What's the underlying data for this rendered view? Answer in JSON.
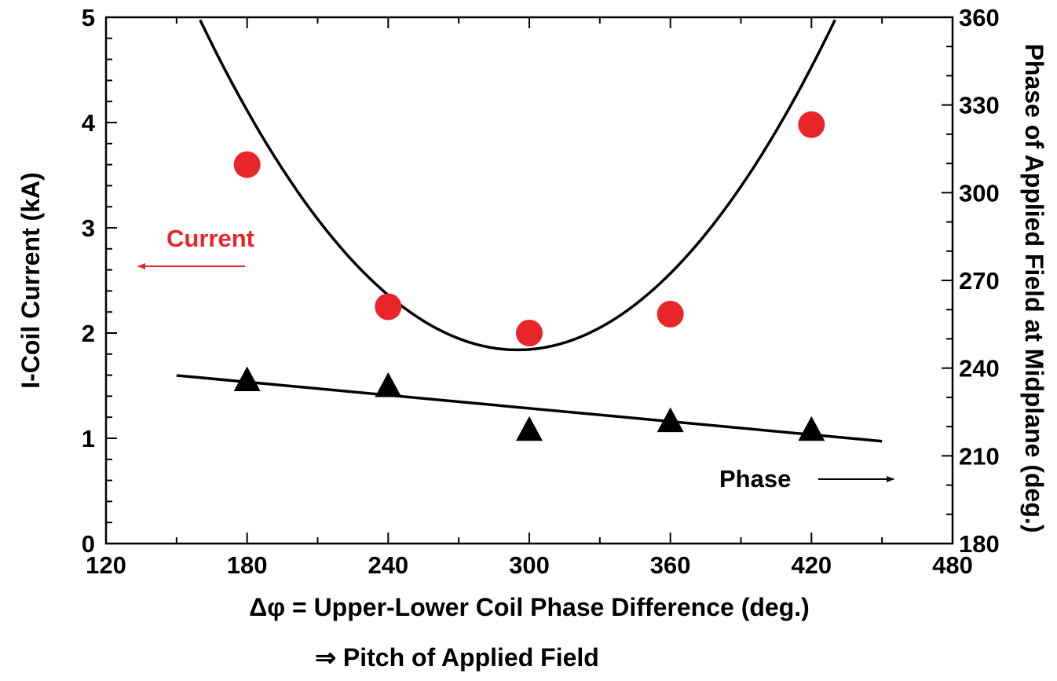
{
  "chart_data": {
    "type": "scatter",
    "title": "",
    "xlabel_line1": "Δφ = Upper-Lower Coil Phase Difference (deg.)",
    "xlabel_line2": "⇒ Pitch of Applied Field",
    "ylabel_left": "I-Coil Current (kA)",
    "ylabel_right": "Phase of Applied Field at Midplane (deg.)",
    "xlim": [
      120,
      480
    ],
    "ylim_left": [
      0,
      5
    ],
    "ylim_right": [
      180,
      360
    ],
    "x_ticks": [
      "120",
      "180",
      "240",
      "300",
      "360",
      "420",
      "480"
    ],
    "y_left_ticks": [
      "0",
      "1",
      "2",
      "3",
      "4",
      "5"
    ],
    "y_right_ticks": [
      "180",
      "210",
      "240",
      "270",
      "300",
      "330",
      "360"
    ],
    "grid": false,
    "colors": {
      "current": "#e8262a",
      "phase": "#000000",
      "fit": "#000000"
    },
    "series": [
      {
        "name": "Current",
        "axis": "left",
        "marker": "circle",
        "x": [
          180,
          240,
          300,
          360,
          420
        ],
        "y": [
          3.6,
          2.25,
          2.0,
          2.18,
          3.98
        ]
      },
      {
        "name": "Phase",
        "axis": "right",
        "marker": "triangle",
        "x": [
          180,
          240,
          300,
          360,
          420
        ],
        "y": [
          236,
          234,
          219,
          222,
          219
        ]
      }
    ],
    "fits": [
      {
        "of": "Current",
        "kind": "quadratic",
        "vertex_x": 295,
        "vertex_y": 1.84,
        "curvature": 0.000172,
        "x_range": [
          135,
          450
        ]
      },
      {
        "of": "Phase",
        "kind": "linear",
        "x_start": 150,
        "y_start": 237.5,
        "x_end": 450,
        "y_end": 215
      }
    ],
    "annotations": [
      {
        "text": "Current",
        "series": "Current",
        "arrow": "left"
      },
      {
        "text": "Phase",
        "series": "Phase",
        "arrow": "right"
      }
    ]
  }
}
